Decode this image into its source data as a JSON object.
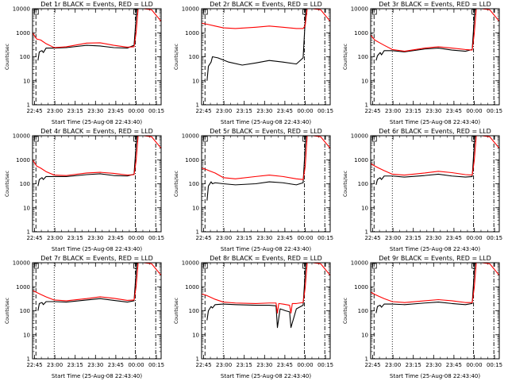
{
  "xlabel": "Start Time (25-Aug-08 22:43:40)",
  "ylabel": "Counts/sec",
  "series_colors": {
    "events": "#000000",
    "lld": "#ff0000"
  },
  "chart_data": [
    {
      "type": "line",
      "title": "Det 1r BLACK = Events, RED = LLD",
      "x_tick_labels": [
        "22:45",
        "23:00",
        "23:15",
        "23:30",
        "23:45",
        "00:00",
        "00:15"
      ],
      "y_tick_labels": [
        "1",
        "10",
        "100",
        "1000",
        "10000"
      ],
      "yscale": "log",
      "ylim": [
        1,
        10000
      ],
      "xlim_minutes": [
        0,
        95
      ],
      "marker_lines_minutes": [
        {
          "x": 2.5,
          "style": "dashed"
        },
        {
          "x": 16,
          "style": "dotted"
        },
        {
          "x": 76,
          "style": "dashdot"
        },
        {
          "x": 91,
          "style": "dashdot"
        }
      ],
      "series": [
        {
          "key": "events",
          "x": [
            4,
            5,
            7,
            8,
            10,
            16,
            25,
            40,
            50,
            60,
            70,
            75,
            77
          ],
          "y": [
            70,
            160,
            180,
            150,
            230,
            230,
            240,
            300,
            280,
            240,
            230,
            300,
            10000
          ]
        },
        {
          "key": "lld",
          "x": [
            0,
            3,
            6,
            10,
            16,
            25,
            40,
            50,
            60,
            70,
            75,
            76.5,
            78,
            82,
            88,
            95
          ],
          "y": [
            1000,
            550,
            500,
            350,
            240,
            260,
            370,
            380,
            300,
            250,
            260,
            1000,
            10000,
            10000,
            9000,
            3000
          ]
        }
      ]
    },
    {
      "type": "line",
      "title": "Det 2r BLACK = Events, RED = LLD",
      "x_tick_labels": [
        "22:45",
        "23:00",
        "23:15",
        "23:30",
        "23:45",
        "00:00",
        "00:15"
      ],
      "y_tick_labels": [
        "1",
        "10",
        "100",
        "1000",
        "10000"
      ],
      "yscale": "log",
      "ylim": [
        1,
        10000
      ],
      "xlim_minutes": [
        0,
        95
      ],
      "marker_lines_minutes": [
        {
          "x": 2.5,
          "style": "dashed"
        },
        {
          "x": 16,
          "style": "dotted"
        },
        {
          "x": 76,
          "style": "dashdot"
        },
        {
          "x": 91,
          "style": "dashdot"
        }
      ],
      "series": [
        {
          "key": "events",
          "x": [
            4,
            5,
            7,
            8,
            12,
            20,
            30,
            40,
            50,
            60,
            70,
            75,
            77
          ],
          "y": [
            10,
            40,
            60,
            100,
            90,
            60,
            45,
            55,
            70,
            60,
            50,
            90,
            10000
          ]
        },
        {
          "key": "lld",
          "x": [
            0,
            5,
            10,
            16,
            25,
            40,
            50,
            60,
            70,
            75,
            76.5,
            78,
            82,
            88,
            95
          ],
          "y": [
            2500,
            2200,
            1900,
            1600,
            1500,
            1700,
            1900,
            1700,
            1500,
            1500,
            2000,
            10000,
            10000,
            9000,
            3000
          ]
        }
      ]
    },
    {
      "type": "line",
      "title": "Det 3r BLACK = Events, RED = LLD",
      "x_tick_labels": [
        "22:45",
        "23:00",
        "23:15",
        "23:30",
        "23:45",
        "00:00",
        "00:15"
      ],
      "y_tick_labels": [
        "1",
        "10",
        "100",
        "1000",
        "10000"
      ],
      "yscale": "log",
      "ylim": [
        1,
        10000
      ],
      "xlim_minutes": [
        0,
        95
      ],
      "marker_lines_minutes": [
        {
          "x": 2.5,
          "style": "dashed"
        },
        {
          "x": 16,
          "style": "dotted"
        },
        {
          "x": 76,
          "style": "dashdot"
        },
        {
          "x": 91,
          "style": "dashdot"
        }
      ],
      "series": [
        {
          "key": "events",
          "x": [
            4,
            5,
            7,
            8,
            10,
            16,
            25,
            40,
            50,
            60,
            70,
            75,
            77
          ],
          "y": [
            70,
            110,
            150,
            120,
            180,
            180,
            160,
            210,
            230,
            190,
            170,
            200,
            10000
          ]
        },
        {
          "key": "lld",
          "x": [
            0,
            3,
            6,
            10,
            16,
            25,
            40,
            50,
            60,
            70,
            75,
            76.5,
            78,
            82,
            88,
            95
          ],
          "y": [
            800,
            500,
            400,
            300,
            200,
            170,
            230,
            260,
            230,
            200,
            190,
            900,
            10000,
            10000,
            9000,
            3000
          ]
        }
      ]
    },
    {
      "type": "line",
      "title": "Det 4r BLACK = Events, RED = LLD",
      "x_tick_labels": [
        "22:45",
        "23:00",
        "23:15",
        "23:30",
        "23:45",
        "00:00",
        "00:15"
      ],
      "y_tick_labels": [
        "1",
        "10",
        "100",
        "1000",
        "10000"
      ],
      "yscale": "log",
      "ylim": [
        1,
        10000
      ],
      "xlim_minutes": [
        0,
        95
      ],
      "marker_lines_minutes": [
        {
          "x": 2.5,
          "style": "dashed"
        },
        {
          "x": 16,
          "style": "dotted"
        },
        {
          "x": 76,
          "style": "dashdot"
        },
        {
          "x": 91,
          "style": "dashdot"
        }
      ],
      "series": [
        {
          "key": "events",
          "x": [
            4,
            5,
            7,
            8,
            10,
            16,
            25,
            40,
            50,
            60,
            70,
            75,
            77
          ],
          "y": [
            80,
            150,
            180,
            150,
            200,
            200,
            200,
            240,
            260,
            220,
            210,
            250,
            10000
          ]
        },
        {
          "key": "lld",
          "x": [
            0,
            3,
            6,
            10,
            16,
            25,
            40,
            50,
            60,
            70,
            75,
            76.5,
            78,
            82,
            88,
            95
          ],
          "y": [
            1000,
            550,
            450,
            320,
            230,
            220,
            280,
            300,
            270,
            230,
            240,
            900,
            10000,
            10000,
            9000,
            3000
          ]
        }
      ]
    },
    {
      "type": "line",
      "title": "Det 5r BLACK = Events, RED = LLD",
      "x_tick_labels": [
        "22:45",
        "23:00",
        "23:15",
        "23:30",
        "23:45",
        "00:00",
        "00:15"
      ],
      "y_tick_labels": [
        "1",
        "10",
        "100",
        "1000",
        "10000"
      ],
      "yscale": "log",
      "ylim": [
        1,
        10000
      ],
      "xlim_minutes": [
        0,
        95
      ],
      "marker_lines_minutes": [
        {
          "x": 2.5,
          "style": "dashed"
        },
        {
          "x": 16,
          "style": "dotted"
        },
        {
          "x": 76,
          "style": "dashdot"
        },
        {
          "x": 91,
          "style": "dashdot"
        }
      ],
      "series": [
        {
          "key": "events",
          "x": [
            4,
            5,
            7,
            8,
            10,
            16,
            25,
            40,
            50,
            60,
            70,
            75,
            77
          ],
          "y": [
            20,
            80,
            120,
            100,
            110,
            100,
            90,
            100,
            120,
            110,
            90,
            110,
            10000
          ]
        },
        {
          "key": "lld",
          "x": [
            0,
            3,
            6,
            10,
            16,
            25,
            40,
            50,
            60,
            70,
            75,
            76.5,
            78,
            82,
            88,
            95
          ],
          "y": [
            450,
            400,
            340,
            280,
            180,
            160,
            200,
            230,
            200,
            160,
            150,
            500,
            10000,
            10000,
            9000,
            3000
          ]
        }
      ]
    },
    {
      "type": "line",
      "title": "Det 6r BLACK = Events, RED = LLD",
      "x_tick_labels": [
        "22:45",
        "23:00",
        "23:15",
        "23:30",
        "23:45",
        "00:00",
        "00:15"
      ],
      "y_tick_labels": [
        "1",
        "10",
        "100",
        "1000",
        "10000"
      ],
      "yscale": "log",
      "ylim": [
        1,
        10000
      ],
      "xlim_minutes": [
        0,
        95
      ],
      "marker_lines_minutes": [
        {
          "x": 2.5,
          "style": "dashed"
        },
        {
          "x": 16,
          "style": "dotted"
        },
        {
          "x": 76,
          "style": "dashdot"
        },
        {
          "x": 91,
          "style": "dashdot"
        }
      ],
      "series": [
        {
          "key": "events",
          "x": [
            4,
            5,
            7,
            8,
            10,
            16,
            25,
            40,
            50,
            60,
            70,
            75,
            77
          ],
          "y": [
            90,
            150,
            180,
            150,
            210,
            210,
            190,
            220,
            250,
            210,
            190,
            200,
            10000
          ]
        },
        {
          "key": "lld",
          "x": [
            0,
            3,
            6,
            10,
            16,
            25,
            40,
            50,
            60,
            70,
            75,
            76.5,
            78,
            82,
            88,
            95
          ],
          "y": [
            700,
            550,
            450,
            350,
            250,
            230,
            280,
            330,
            290,
            240,
            230,
            900,
            10000,
            10000,
            9000,
            3000
          ]
        }
      ]
    },
    {
      "type": "line",
      "title": "Det 7r BLACK = Events, RED = LLD",
      "x_tick_labels": [
        "22:45",
        "23:00",
        "23:15",
        "23:30",
        "23:45",
        "00:00",
        "00:15"
      ],
      "y_tick_labels": [
        "1",
        "10",
        "100",
        "1000",
        "10000"
      ],
      "yscale": "log",
      "ylim": [
        1,
        10000
      ],
      "xlim_minutes": [
        0,
        95
      ],
      "marker_lines_minutes": [
        {
          "x": 2.5,
          "style": "dashed"
        },
        {
          "x": 16,
          "style": "dotted"
        },
        {
          "x": 76,
          "style": "dashdot"
        },
        {
          "x": 91,
          "style": "dashdot"
        }
      ],
      "series": [
        {
          "key": "events",
          "x": [
            4,
            5,
            7,
            8,
            10,
            16,
            25,
            40,
            50,
            60,
            70,
            75,
            77
          ],
          "y": [
            100,
            200,
            220,
            180,
            240,
            240,
            230,
            280,
            320,
            270,
            230,
            260,
            10000
          ]
        },
        {
          "key": "lld",
          "x": [
            0,
            3,
            6,
            10,
            16,
            25,
            40,
            50,
            60,
            70,
            75,
            76.5,
            78,
            82,
            88,
            95
          ],
          "y": [
            700,
            580,
            480,
            380,
            280,
            260,
            320,
            380,
            330,
            270,
            280,
            1000,
            10000,
            10000,
            9000,
            3000
          ]
        }
      ]
    },
    {
      "type": "line",
      "title": "Det 8r BLACK = Events, RED = LLD",
      "x_tick_labels": [
        "22:45",
        "23:00",
        "23:15",
        "23:30",
        "23:45",
        "00:00",
        "00:15"
      ],
      "y_tick_labels": [
        "1",
        "10",
        "100",
        "1000",
        "10000"
      ],
      "yscale": "log",
      "ylim": [
        1,
        10000
      ],
      "xlim_minutes": [
        0,
        95
      ],
      "marker_lines_minutes": [
        {
          "x": 2.5,
          "style": "dashed"
        },
        {
          "x": 16,
          "style": "dotted"
        },
        {
          "x": 76,
          "style": "dashdot"
        },
        {
          "x": 91,
          "style": "dashdot"
        }
      ],
      "series": [
        {
          "key": "events",
          "x": [
            4,
            5,
            7,
            8,
            10,
            16,
            25,
            40,
            50,
            55,
            56,
            58,
            60,
            62,
            65,
            66,
            70,
            75,
            77
          ],
          "y": [
            40,
            100,
            150,
            130,
            180,
            190,
            180,
            170,
            170,
            160,
            20,
            120,
            110,
            100,
            90,
            20,
            120,
            170,
            10000
          ]
        },
        {
          "key": "lld",
          "x": [
            0,
            3,
            6,
            10,
            16,
            25,
            40,
            50,
            55,
            56,
            57,
            60,
            65,
            66,
            67,
            70,
            75,
            76.5,
            78,
            82,
            88,
            95
          ],
          "y": [
            500,
            450,
            380,
            300,
            230,
            210,
            200,
            210,
            210,
            80,
            200,
            190,
            170,
            80,
            200,
            200,
            220,
            900,
            10000,
            10000,
            9000,
            3000
          ]
        }
      ]
    },
    {
      "type": "line",
      "title": "Det 9r BLACK = Events, RED = LLD",
      "x_tick_labels": [
        "22:45",
        "23:00",
        "23:15",
        "23:30",
        "23:45",
        "00:00",
        "00:15"
      ],
      "y_tick_labels": [
        "1",
        "10",
        "100",
        "1000",
        "10000"
      ],
      "yscale": "log",
      "ylim": [
        1,
        10000
      ],
      "xlim_minutes": [
        0,
        95
      ],
      "marker_lines_minutes": [
        {
          "x": 2.5,
          "style": "dashed"
        },
        {
          "x": 16,
          "style": "dotted"
        },
        {
          "x": 76,
          "style": "dashdot"
        },
        {
          "x": 91,
          "style": "dashdot"
        }
      ],
      "series": [
        {
          "key": "events",
          "x": [
            4,
            5,
            7,
            8,
            10,
            16,
            25,
            40,
            50,
            60,
            70,
            75,
            77
          ],
          "y": [
            80,
            150,
            170,
            140,
            190,
            190,
            180,
            210,
            230,
            200,
            180,
            200,
            10000
          ]
        },
        {
          "key": "lld",
          "x": [
            0,
            3,
            6,
            10,
            16,
            25,
            40,
            50,
            60,
            70,
            75,
            76.5,
            78,
            82,
            88,
            95
          ],
          "y": [
            600,
            480,
            400,
            320,
            240,
            220,
            260,
            290,
            260,
            220,
            220,
            900,
            10000,
            10000,
            9000,
            3000
          ]
        }
      ]
    }
  ]
}
